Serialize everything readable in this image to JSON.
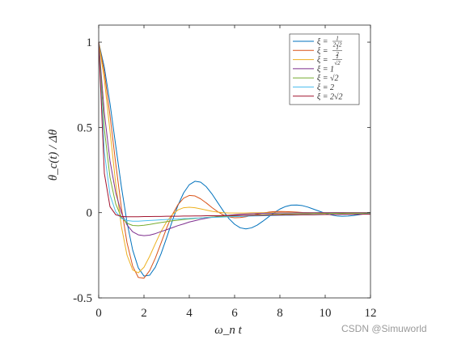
{
  "watermark": "CSDN @Simuworld",
  "chart_data": {
    "type": "line",
    "xlabel": "ω_n t",
    "ylabel": "θ_c(t) / Δθ",
    "xlim": [
      0,
      12
    ],
    "ylim": [
      -0.5,
      1.1
    ],
    "xticks": [
      "0",
      "2",
      "4",
      "6",
      "8",
      "10",
      "12"
    ],
    "yticks": [
      "-0.5",
      "0",
      "0.5",
      "1"
    ],
    "ytick_values": [
      -0.5,
      0,
      0.5,
      1
    ],
    "legend_position": "top-right",
    "x": [
      0,
      0.25,
      0.5,
      0.75,
      1,
      1.25,
      1.5,
      1.75,
      2,
      2.25,
      2.5,
      2.75,
      3,
      3.25,
      3.5,
      3.75,
      4,
      4.25,
      4.5,
      4.75,
      5,
      5.25,
      5.5,
      5.75,
      6,
      6.25,
      6.5,
      6.75,
      7,
      7.25,
      7.5,
      7.75,
      8,
      8.25,
      8.5,
      8.75,
      9,
      9.25,
      9.5,
      9.75,
      10,
      10.25,
      10.5,
      10.75,
      11,
      11.25,
      11.5,
      11.75,
      12
    ],
    "series": [
      {
        "name": "ξ = 1/(2√2)",
        "label_parts": {
          "pre": "ξ =",
          "num": "1",
          "den": "2√2"
        },
        "color": "#0072BD",
        "values": [
          1,
          0.852,
          0.639,
          0.395,
          0.154,
          -0.057,
          -0.219,
          -0.324,
          -0.372,
          -0.367,
          -0.32,
          -0.242,
          -0.147,
          -0.048,
          0.043,
          0.116,
          0.164,
          0.184,
          0.179,
          0.152,
          0.11,
          0.06,
          0.01,
          -0.035,
          -0.068,
          -0.089,
          -0.095,
          -0.089,
          -0.073,
          -0.05,
          -0.025,
          0,
          0.021,
          0.036,
          0.044,
          0.045,
          0.041,
          0.032,
          0.02,
          0.008,
          -0.004,
          -0.013,
          -0.019,
          -0.021,
          -0.02,
          -0.017,
          -0.012,
          -0.006,
          0
        ]
      },
      {
        "name": "ξ = 1/2",
        "label_parts": {
          "pre": "ξ =",
          "num": "1",
          "den": "2"
        },
        "color": "#D95319",
        "values": [
          1,
          0.823,
          0.569,
          0.29,
          0.031,
          -0.176,
          -0.314,
          -0.38,
          -0.384,
          -0.34,
          -0.267,
          -0.179,
          -0.09,
          -0.012,
          0.047,
          0.085,
          0.101,
          0.098,
          0.081,
          0.057,
          0.03,
          0.006,
          -0.013,
          -0.025,
          -0.03,
          -0.029,
          -0.024,
          -0.017,
          -0.009,
          -0.002,
          0.003,
          0.006,
          0.007,
          0.006,
          0.005,
          0.003,
          0.001,
          0,
          -0.001,
          -0.001,
          -0.001,
          -0.001,
          0,
          0,
          0,
          0,
          0,
          0,
          0
        ]
      },
      {
        "name": "ξ = 1/√2",
        "label_parts": {
          "pre": "ξ =",
          "num": "1",
          "den": "√2"
        },
        "color": "#EDB120",
        "values": [
          1,
          0.78,
          0.477,
          0.172,
          -0.079,
          -0.249,
          -0.336,
          -0.353,
          -0.32,
          -0.256,
          -0.182,
          -0.111,
          -0.053,
          -0.011,
          0.016,
          0.029,
          0.032,
          0.029,
          0.022,
          0.015,
          0.008,
          0.003,
          0,
          -0.002,
          -0.002,
          -0.002,
          -0.002,
          -0.001,
          -0.001,
          0,
          0,
          0,
          0,
          0,
          0,
          0,
          0,
          0,
          0,
          0,
          0,
          0,
          0,
          0,
          0,
          0,
          0,
          0,
          0
        ]
      },
      {
        "name": "ξ = 1",
        "label_parts": {
          "pre": "ξ = 1",
          "num": "",
          "den": ""
        },
        "color": "#7E2F8E",
        "values": [
          1,
          0.584,
          0.303,
          0.118,
          0,
          -0.072,
          -0.112,
          -0.13,
          -0.135,
          -0.132,
          -0.123,
          -0.111,
          -0.1,
          -0.088,
          -0.076,
          -0.066,
          -0.055,
          -0.047,
          -0.039,
          -0.033,
          -0.027,
          -0.022,
          -0.018,
          -0.015,
          -0.012,
          -0.01,
          -0.008,
          -0.006,
          -0.005,
          -0.004,
          -0.003,
          -0.003,
          -0.002,
          -0.002,
          -0.002,
          -0.001,
          -0.001,
          -0.001,
          -0.001,
          0,
          0,
          0,
          0,
          0,
          0,
          0,
          0,
          0,
          0
        ]
      },
      {
        "name": "ξ = √2",
        "label_parts": {
          "pre": "ξ = √2",
          "num": "",
          "den": ""
        },
        "color": "#77AC30",
        "values": [
          1,
          0.49,
          0.206,
          0.052,
          -0.027,
          -0.062,
          -0.075,
          -0.077,
          -0.074,
          -0.069,
          -0.063,
          -0.058,
          -0.053,
          -0.048,
          -0.044,
          -0.04,
          -0.037,
          -0.034,
          -0.031,
          -0.028,
          -0.026,
          -0.024,
          -0.022,
          -0.02,
          -0.018,
          -0.017,
          -0.015,
          -0.014,
          -0.013,
          -0.012,
          -0.011,
          -0.01,
          -0.009,
          -0.008,
          -0.008,
          -0.007,
          -0.006,
          -0.006,
          -0.005,
          -0.005,
          -0.005,
          -0.004,
          -0.004,
          -0.004,
          -0.003,
          -0.003,
          -0.003,
          -0.003,
          -0.002
        ]
      },
      {
        "name": "ξ = 2",
        "label_parts": {
          "pre": "ξ = 2",
          "num": "",
          "den": ""
        },
        "color": "#4DBEEE",
        "values": [
          1,
          0.356,
          0.104,
          0.005,
          -0.033,
          -0.046,
          -0.05,
          -0.05,
          -0.048,
          -0.046,
          -0.044,
          -0.042,
          -0.04,
          -0.038,
          -0.037,
          -0.035,
          -0.034,
          -0.032,
          -0.031,
          -0.029,
          -0.028,
          -0.027,
          -0.026,
          -0.024,
          -0.023,
          -0.022,
          -0.021,
          -0.02,
          -0.019,
          -0.018,
          -0.018,
          -0.017,
          -0.016,
          -0.015,
          -0.015,
          -0.014,
          -0.013,
          -0.013,
          -0.012,
          -0.012,
          -0.011,
          -0.01,
          -0.01,
          -0.009,
          -0.009,
          -0.009,
          -0.008,
          -0.008,
          -0.007
        ]
      },
      {
        "name": "ξ = 2√2",
        "label_parts": {
          "pre": "ξ = 2√2",
          "num": "",
          "den": ""
        },
        "color": "#A2142F",
        "values": [
          1,
          0.23,
          0.035,
          -0.012,
          -0.022,
          -0.024,
          -0.024,
          -0.024,
          -0.023,
          -0.023,
          -0.022,
          -0.022,
          -0.021,
          -0.021,
          -0.021,
          -0.02,
          -0.02,
          -0.019,
          -0.019,
          -0.018,
          -0.018,
          -0.018,
          -0.017,
          -0.017,
          -0.016,
          -0.016,
          -0.016,
          -0.015,
          -0.015,
          -0.015,
          -0.014,
          -0.014,
          -0.014,
          -0.013,
          -0.013,
          -0.013,
          -0.012,
          -0.012,
          -0.012,
          -0.011,
          -0.011,
          -0.011,
          -0.011,
          -0.01,
          -0.01,
          -0.01,
          -0.01,
          -0.009,
          -0.009
        ]
      }
    ]
  }
}
